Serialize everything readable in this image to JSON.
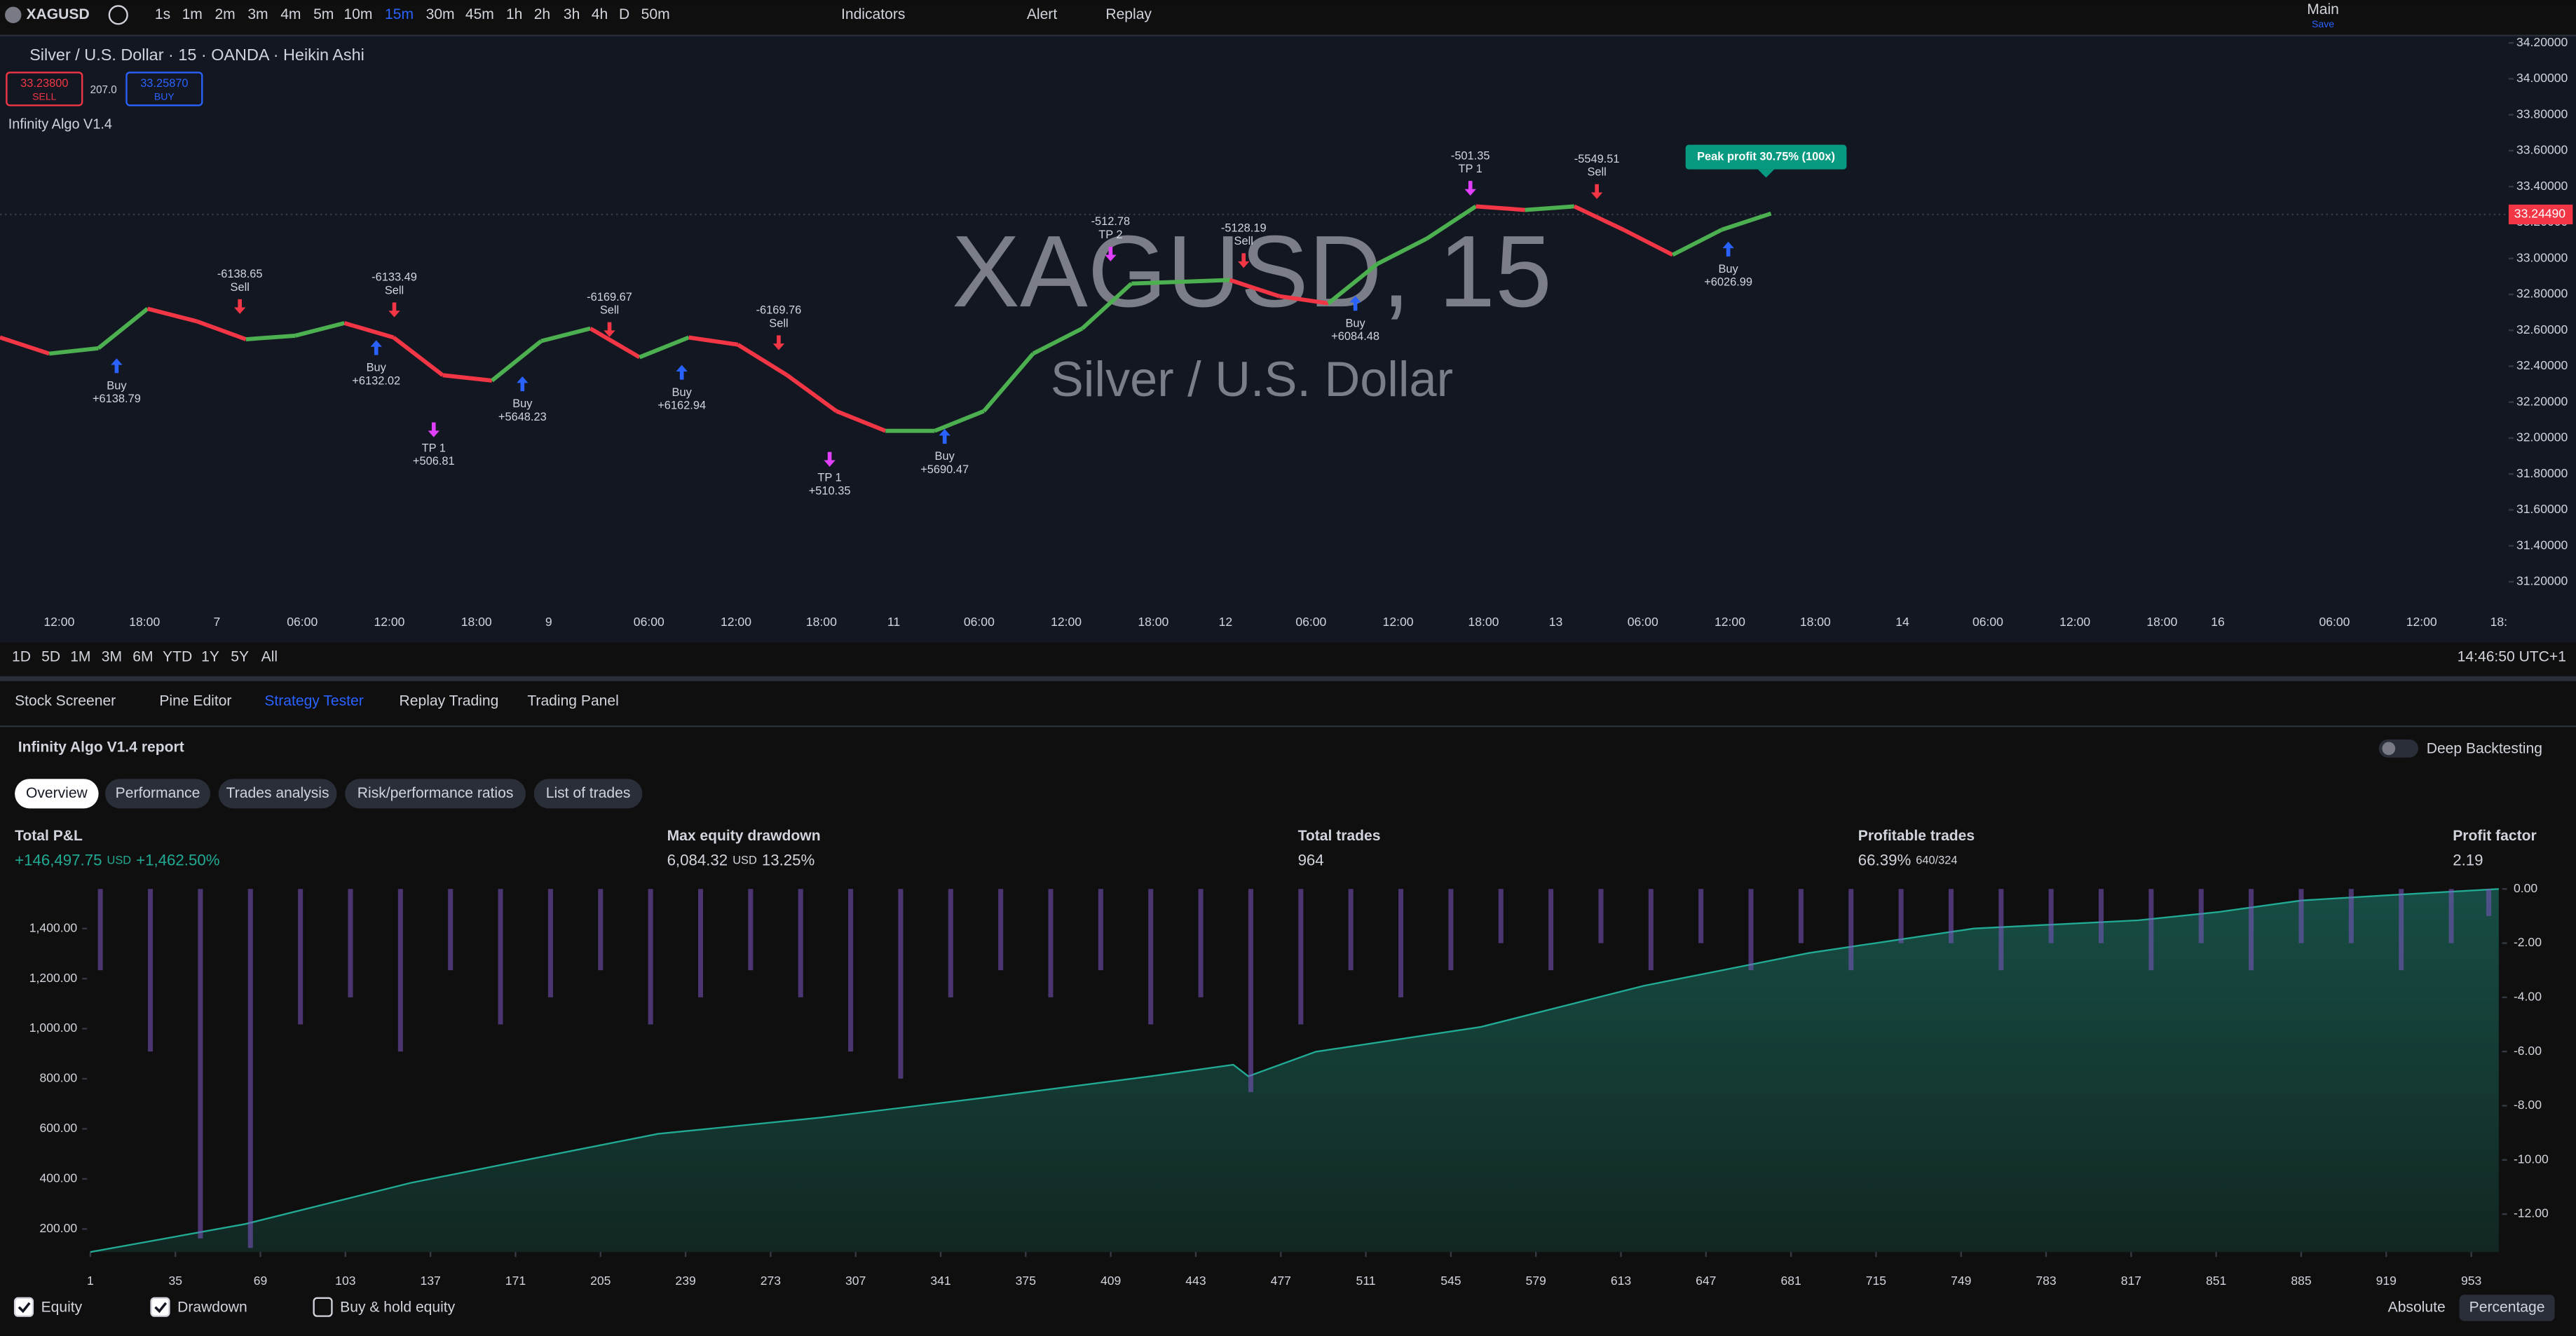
{
  "toolbar": {
    "symbol": "XAGUSD",
    "intervals": [
      {
        "label": "1s"
      },
      {
        "label": "1m"
      },
      {
        "label": "2m"
      },
      {
        "label": "3m"
      },
      {
        "label": "4m"
      },
      {
        "label": "5m"
      },
      {
        "label": "10m"
      },
      {
        "label": "15m",
        "active": true
      },
      {
        "label": "30m"
      },
      {
        "label": "45m"
      },
      {
        "label": "1h"
      },
      {
        "label": "2h"
      },
      {
        "label": "3h"
      },
      {
        "label": "4h"
      },
      {
        "label": "D"
      },
      {
        "label": "50m"
      }
    ],
    "indicators": "Indicators",
    "alert": "Alert",
    "replay": "Replay",
    "layout": "Main",
    "layout_sub": "Save"
  },
  "chart": {
    "title": "Silver / U.S. Dollar · 15 · OANDA · Heikin Ashi",
    "sell_price": "33.23800",
    "sell": "SELL",
    "spread": "207.0",
    "buy_price": "33.25870",
    "buy": "BUY",
    "indicator": "Infinity Algo V1.4",
    "watermark": "XAGUSD, 15",
    "watermark_sub": "Silver / U.S. Dollar",
    "last_price": {
      "value": 33.2449,
      "label": "33.24490"
    },
    "peak": "Peak profit 30.75% (100x)",
    "ylim": [
      31.2,
      34.2
    ],
    "yticks": [
      {
        "value": 34.2,
        "label": "34.20000"
      },
      {
        "value": 34.0,
        "label": "34.00000"
      },
      {
        "value": 33.8,
        "label": "33.80000"
      },
      {
        "value": 33.6,
        "label": "33.60000"
      },
      {
        "value": 33.4,
        "label": "33.40000"
      },
      {
        "value": 33.2,
        "label": "33.20000"
      },
      {
        "value": 33.0,
        "label": "33.00000"
      },
      {
        "value": 32.8,
        "label": "32.80000"
      },
      {
        "value": 32.6,
        "label": "32.60000"
      },
      {
        "value": 32.4,
        "label": "32.40000"
      },
      {
        "value": 32.2,
        "label": "32.20000"
      },
      {
        "value": 32.0,
        "label": "32.00000"
      },
      {
        "value": 31.8,
        "label": "31.80000"
      },
      {
        "value": 31.6,
        "label": "31.60000"
      },
      {
        "value": 31.4,
        "label": "31.40000"
      },
      {
        "value": 31.2,
        "label": "31.20000"
      }
    ],
    "xticks": [
      "12:00",
      "18:00",
      "7",
      "06:00",
      "12:00",
      "18:00",
      "9",
      "06:00",
      "12:00",
      "18:00",
      "11",
      "06:00",
      "12:00",
      "18:00",
      "12",
      "06:00",
      "12:00",
      "18:00",
      "13",
      "06:00",
      "12:00",
      "18:00",
      "14",
      "06:00",
      "12:00",
      "18:00",
      "16",
      "06:00",
      "12:00",
      "18:"
    ],
    "prices": [
      32.56,
      32.47,
      32.5,
      32.72,
      32.65,
      32.55,
      32.57,
      32.64,
      32.56,
      32.35,
      32.32,
      32.54,
      32.61,
      32.45,
      32.56,
      32.52,
      32.35,
      32.15,
      32.04,
      32.04,
      32.15,
      32.47,
      32.61,
      32.86,
      32.87,
      32.88,
      32.79,
      32.75,
      32.97,
      33.11,
      33.29,
      33.27,
      33.29,
      33.16,
      33.02,
      33.16,
      33.25
    ],
    "up_color": "#4caf50",
    "down_color": "#f23645",
    "signals": [
      {
        "text": [
          "-6138.65",
          "Sell"
        ],
        "color": "#f23645",
        "arrow": "below"
      },
      {
        "text": [
          "Buy",
          "+6138.79"
        ],
        "color": "#2962ff",
        "arrow": "above"
      },
      {
        "text": [
          "-6133.49",
          "Sell"
        ],
        "color": "#f23645",
        "arrow": "below"
      },
      {
        "text": [
          "Buy",
          "+6132.02"
        ],
        "color": "#2962ff",
        "arrow": "above"
      },
      {
        "text": [
          "TP 1",
          "+506.81"
        ],
        "color": "#e040fb",
        "arrow": "above"
      },
      {
        "text": [
          "Buy",
          "+5648.23"
        ],
        "color": "#2962ff",
        "arrow": "above"
      },
      {
        "text": [
          "-6169.67",
          "Sell"
        ],
        "color": "#f23645",
        "arrow": "below"
      },
      {
        "text": [
          "Buy",
          "+6162.94"
        ],
        "color": "#2962ff",
        "arrow": "above"
      },
      {
        "text": [
          "-6169.76",
          "Sell"
        ],
        "color": "#f23645",
        "arrow": "below"
      },
      {
        "text": [
          "TP 1",
          "+510.35"
        ],
        "color": "#e040fb",
        "arrow": "above"
      },
      {
        "text": [
          "Buy",
          "+5690.47"
        ],
        "color": "#2962ff",
        "arrow": "above"
      },
      {
        "text": [
          "-512.78",
          "TP 2"
        ],
        "color": "#e040fb",
        "arrow": "below"
      },
      {
        "text": [
          "-5128.19",
          "Sell"
        ],
        "color": "#f23645",
        "arrow": "below"
      },
      {
        "text": [
          "Buy",
          "+6084.48"
        ],
        "color": "#2962ff",
        "arrow": "above"
      },
      {
        "text": [
          "-501.35",
          "TP 1"
        ],
        "color": "#e040fb",
        "arrow": "below"
      },
      {
        "text": [
          "-5549.51",
          "Sell"
        ],
        "color": "#f23645",
        "arrow": "below"
      },
      {
        "text": [
          "Buy",
          "+6026.99"
        ],
        "color": "#2962ff",
        "arrow": "above"
      }
    ]
  },
  "range_bar": {
    "buttons": [
      "1D",
      "5D",
      "1M",
      "3M",
      "6M",
      "YTD",
      "1Y",
      "5Y",
      "All"
    ],
    "clock": "14:46:50 UTC+1"
  },
  "panel": {
    "tabs": [
      {
        "label": "Stock Screener"
      },
      {
        "label": "Pine Editor"
      },
      {
        "label": "Strategy Tester",
        "active": true
      },
      {
        "label": "Replay Trading"
      },
      {
        "label": "Trading Panel"
      }
    ],
    "report_title": "Infinity Algo V1.4 report",
    "deep_backtesting": "Deep Backtesting",
    "subtabs": [
      {
        "label": "Overview",
        "active": true
      },
      {
        "label": "Performance"
      },
      {
        "label": "Trades analysis"
      },
      {
        "label": "Risk/performance ratios"
      },
      {
        "label": "List of trades"
      }
    ],
    "metrics": [
      {
        "label": "Total P&L",
        "parts": [
          {
            "text": "+146,497.75",
            "color": "#22ab94"
          },
          {
            "text": "USD",
            "color": "#22ab94",
            "small": true
          },
          {
            "text": "+1,462.50%",
            "color": "#22ab94"
          }
        ]
      },
      {
        "label": "Max equity drawdown",
        "parts": [
          {
            "text": "6,084.32",
            "color": "#d1d4dc"
          },
          {
            "text": "USD",
            "color": "#d1d4dc",
            "small": true
          },
          {
            "text": "13.25%",
            "color": "#d1d4dc"
          }
        ]
      },
      {
        "label": "Total trades",
        "parts": [
          {
            "text": "964",
            "color": "#d1d4dc"
          }
        ]
      },
      {
        "label": "Profitable trades",
        "parts": [
          {
            "text": "66.39%",
            "color": "#d1d4dc"
          },
          {
            "text": "640/324",
            "color": "#d1d4dc",
            "small": true
          }
        ]
      },
      {
        "label": "Profit factor",
        "parts": [
          {
            "text": "2.19",
            "color": "#d1d4dc"
          }
        ]
      }
    ],
    "legend": [
      "Equity",
      "Drawdown",
      "Buy & hold equity"
    ],
    "modes": [
      {
        "label": "Absolute"
      },
      {
        "label": "Percentage",
        "active": true
      }
    ]
  },
  "chart_data": {
    "type": "area",
    "xlim": [
      1,
      964
    ],
    "ylim": [
      108,
      1558
    ],
    "y2lim": [
      -13.4,
      0
    ],
    "xticks": [
      1,
      35,
      69,
      103,
      137,
      171,
      205,
      239,
      273,
      307,
      341,
      375,
      409,
      443,
      477,
      511,
      545,
      579,
      613,
      647,
      681,
      715,
      749,
      783,
      817,
      851,
      885,
      919,
      953
    ],
    "yticks": [
      {
        "value": 1400,
        "label": "1,400.00"
      },
      {
        "value": 1200,
        "label": "1,200.00"
      },
      {
        "value": 1000,
        "label": "1,000.00"
      },
      {
        "value": 800,
        "label": "800.00"
      },
      {
        "value": 600,
        "label": "600.00"
      },
      {
        "value": 400,
        "label": "400.00"
      },
      {
        "value": 200,
        "label": "200.00"
      }
    ],
    "y2ticks": [
      {
        "value": 0,
        "label": "0.00"
      },
      {
        "value": -2,
        "label": "-2.00"
      },
      {
        "value": -4,
        "label": "-4.00"
      },
      {
        "value": -6,
        "label": "-6.00"
      },
      {
        "value": -8,
        "label": "-8.00"
      },
      {
        "value": -10,
        "label": "-10.00"
      },
      {
        "value": -12,
        "label": "-12.00"
      }
    ],
    "series": [
      {
        "name": "Equity",
        "color": "#22ab94",
        "x": [
          1,
          63,
          129,
          195,
          228,
          294,
          359,
          425,
          458,
          464,
          491,
          557,
          622,
          688,
          754,
          820,
          852,
          885,
          918,
          964
        ],
        "values": [
          108,
          220,
          384,
          515,
          580,
          646,
          725,
          810,
          856,
          810,
          908,
          1007,
          1171,
          1302,
          1400,
          1433,
          1466,
          1512,
          1532,
          1558
        ]
      },
      {
        "name": "Drawdown",
        "color": "#7e57c2",
        "axis": "y2",
        "x": [
          5,
          25,
          45,
          65,
          85,
          105,
          125,
          145,
          165,
          185,
          205,
          225,
          245,
          265,
          285,
          305,
          325,
          345,
          365,
          385,
          405,
          425,
          445,
          465,
          485,
          505,
          525,
          545,
          565,
          585,
          605,
          625,
          645,
          665,
          685,
          705,
          725,
          745,
          765,
          785,
          805,
          825,
          845,
          865,
          885,
          905,
          925,
          945,
          960
        ],
        "values": [
          -3,
          -6,
          -12.9,
          -13.25,
          -5,
          -4,
          -6,
          -3,
          -5,
          -4,
          -3,
          -5,
          -4,
          -3,
          -4,
          -6,
          -7,
          -4,
          -3,
          -4,
          -3,
          -5,
          -4,
          -7.5,
          -5,
          -3,
          -4,
          -3,
          -2,
          -3,
          -2,
          -3,
          -2,
          -3,
          -2,
          -3,
          -2,
          -2,
          -3,
          -2,
          -2,
          -3,
          -2,
          -3,
          -2,
          -2,
          -3,
          -2,
          -1
        ]
      }
    ]
  }
}
